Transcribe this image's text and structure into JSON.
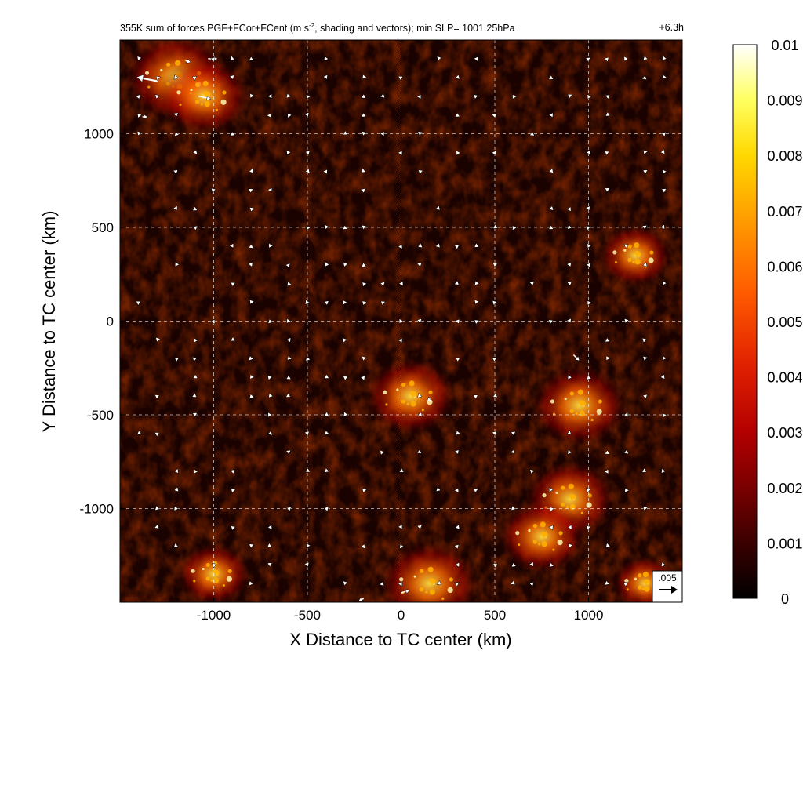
{
  "chart_data": {
    "type": "heatmap",
    "title_left": "355K sum of forces PGF+FCor+FCent (m s",
    "title_sup": "-2",
    "title_left_rest": ", shading and vectors); min SLP= 1001.25hPa",
    "title_right": "+6.3h",
    "xlabel": "X Distance to TC center (km)",
    "ylabel": "Y Distance to TC center (km)",
    "xlim": [
      -1500,
      1500
    ],
    "ylim": [
      -1500,
      1500
    ],
    "xticks": [
      -1000,
      -500,
      0,
      500,
      1000
    ],
    "yticks": [
      -1000,
      -500,
      0,
      500,
      1000
    ],
    "grid": "dashed",
    "colorbar": {
      "min": 0,
      "max": 0.01,
      "ticks": [
        "0.01",
        "0.009",
        "0.008",
        "0.007",
        "0.006",
        "0.005",
        "0.004",
        "0.003",
        "0.002",
        "0.001",
        "0"
      ],
      "colormap": [
        "#000000",
        "#3a0000",
        "#7a0000",
        "#b30000",
        "#e02000",
        "#ff5a00",
        "#ff9a00",
        "#ffd800",
        "#ffff60",
        "#ffffff"
      ]
    },
    "reference_vector": {
      "label": ".005",
      "magnitude": 0.005
    },
    "hotspots": [
      {
        "x": -1200,
        "y": 1300,
        "v": 0.0075
      },
      {
        "x": -1050,
        "y": 1200,
        "v": 0.006
      },
      {
        "x": 50,
        "y": -400,
        "v": 0.006
      },
      {
        "x": 950,
        "y": -450,
        "v": 0.0065
      },
      {
        "x": 900,
        "y": -950,
        "v": 0.006
      },
      {
        "x": 750,
        "y": -1150,
        "v": 0.0055
      },
      {
        "x": 150,
        "y": -1400,
        "v": 0.007
      },
      {
        "x": -1000,
        "y": -1350,
        "v": 0.004
      },
      {
        "x": 1250,
        "y": 350,
        "v": 0.004
      },
      {
        "x": 1300,
        "y": -1400,
        "v": 0.003
      }
    ],
    "large_vectors": [
      {
        "x": -1300,
        "y": 1280,
        "u": -0.006,
        "v": 0.0012
      },
      {
        "x": -1080,
        "y": 1200,
        "u": 0.0035,
        "v": -0.0008
      },
      {
        "x": -1030,
        "y": 1400,
        "u": 0.0028,
        "v": 0.0
      },
      {
        "x": -1150,
        "y": 1390,
        "u": 0.0015,
        "v": -0.0005
      },
      {
        "x": -1380,
        "y": 1090,
        "u": 0.0015,
        "v": 0.0
      },
      {
        "x": 920,
        "y": -180,
        "u": 0.0017,
        "v": -0.0017
      },
      {
        "x": 160,
        "y": -410,
        "u": -0.0012,
        "v": -0.001
      },
      {
        "x": 0,
        "y": -1450,
        "u": 0.0025,
        "v": 0.0008
      },
      {
        "x": -200,
        "y": -1480,
        "u": -0.0015,
        "v": -0.0008
      }
    ]
  }
}
